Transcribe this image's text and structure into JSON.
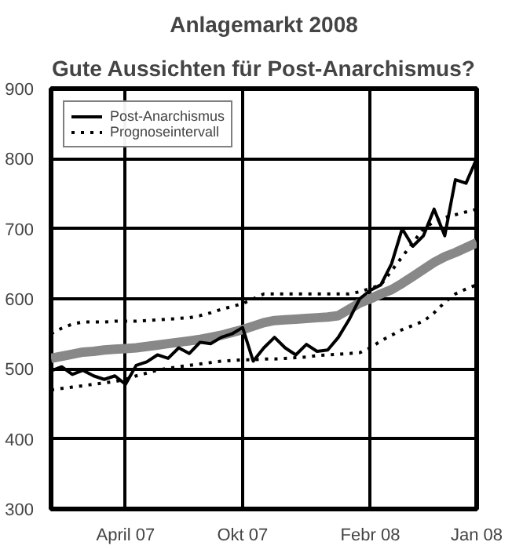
{
  "chart_data": {
    "type": "line",
    "title": "Anlagemarkt 2008",
    "subtitle": "Gute Aussichten für Post-Anarchismus?",
    "categories": [
      null,
      null,
      null,
      null,
      null,
      null,
      null,
      "April 07",
      null,
      null,
      null,
      null,
      null,
      null,
      null,
      null,
      null,
      null,
      "Okt 07",
      null,
      null,
      null,
      null,
      null,
      null,
      null,
      null,
      null,
      null,
      null,
      "Febr 08",
      null,
      null,
      null,
      null,
      null,
      null,
      null,
      null,
      null,
      "Jan 08"
    ],
    "ylim": [
      300,
      900
    ],
    "yticks": [
      300,
      400,
      500,
      600,
      700,
      800,
      900
    ],
    "grid": true,
    "legend": "top left",
    "series": [
      {
        "name": "Post-Anarchismus",
        "color": "#000000",
        "line_style": "solid",
        "values": [
          497,
          503,
          492,
          498,
          490,
          485,
          490,
          478,
          505,
          510,
          520,
          515,
          530,
          522,
          538,
          536,
          545,
          550,
          559,
          511,
          530,
          545,
          530,
          520,
          535,
          525,
          527,
          545,
          570,
          600,
          612,
          620,
          650,
          700,
          675,
          690,
          728,
          690,
          770,
          765,
          800
        ]
      },
      {
        "color": "#888888",
        "line_style": "solid",
        "values": [
          515,
          518,
          521,
          524,
          525,
          527,
          528,
          529,
          530,
          532,
          534,
          536,
          538,
          540,
          542,
          545,
          548,
          552,
          556,
          561,
          566,
          569,
          570,
          571,
          572,
          573,
          574,
          576,
          585,
          594,
          600,
          607,
          613,
          622,
          632,
          642,
          652,
          660,
          666,
          673,
          680
        ]
      },
      {
        "name": "Prognoseintervall",
        "color": "#000000",
        "line_style": "dotted",
        "values": [
          550,
          558,
          564,
          567,
          567,
          567,
          568,
          568,
          568,
          569,
          570,
          571,
          572,
          573,
          576,
          580,
          585,
          589,
          593,
          600,
          607,
          607,
          607,
          607,
          607,
          607,
          607,
          607,
          607,
          610,
          615,
          620,
          640,
          660,
          680,
          700,
          710,
          716,
          720,
          724,
          728
        ]
      },
      {
        "color": "#000000",
        "line_style": "dotted",
        "values": [
          470,
          472,
          474,
          476,
          478,
          480,
          482,
          485,
          490,
          494,
          498,
          501,
          503,
          505,
          507,
          509,
          511,
          512,
          513,
          513,
          514,
          514,
          515,
          516,
          517,
          519,
          520,
          521,
          522,
          523,
          530,
          540,
          548,
          556,
          562,
          568,
          580,
          595,
          607,
          614,
          620
        ]
      }
    ]
  }
}
